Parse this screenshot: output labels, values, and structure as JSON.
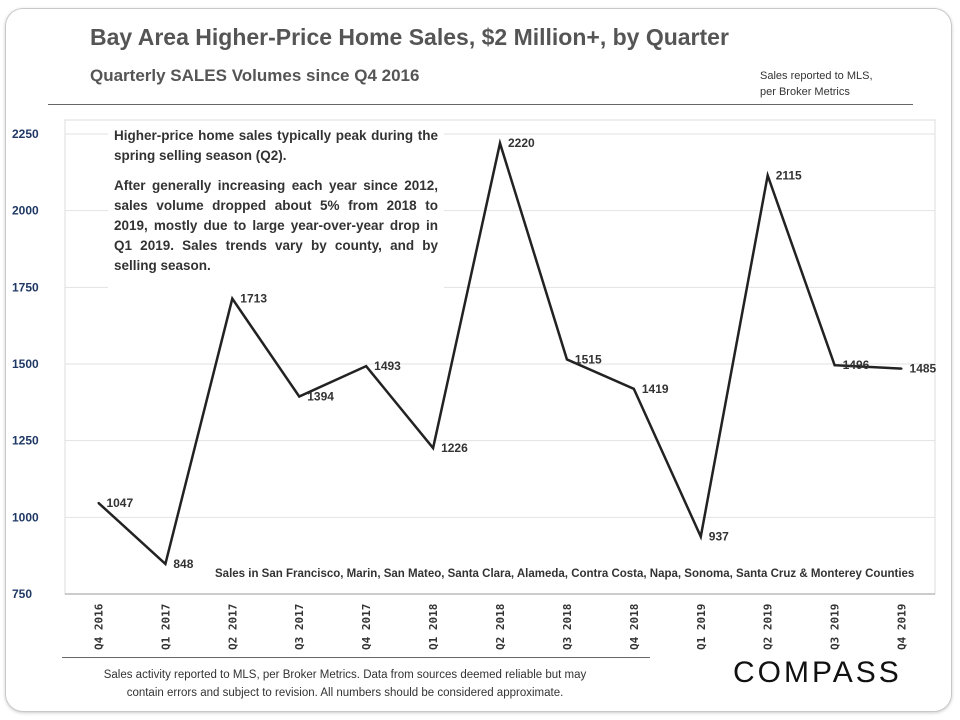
{
  "header": {
    "title": "Bay Area Higher-Price Home Sales, $2 Million+, by Quarter",
    "subtitle": "Quarterly  SALES Volumes since Q4 2016",
    "source_line1": "Sales reported to MLS,",
    "source_line2": "per Broker Metrics"
  },
  "annotation": {
    "p1": "Higher-price home sales typically peak during the spring selling season (Q2).",
    "p2": "After generally increasing each year since 2012, sales volume dropped about 5% from 2018 to 2019, mostly due to large year-over-year drop in Q1 2019. Sales trends vary by county, and by selling season."
  },
  "counties_note": "Sales in San Francisco, Marin, San Mateo, Santa Clara, Alameda, Contra Costa, Napa, Sonoma, Santa Cruz & Monterey Counties",
  "footer": {
    "line1": "Sales activity reported to MLS, per Broker Metrics. Data from sources deemed reliable but may",
    "line2": "contain errors and subject to revision. All numbers should  be considered approximate.",
    "logo": "COMPASS"
  },
  "chart_data": {
    "type": "line",
    "categories": [
      "Q4 2016",
      "Q1 2017",
      "Q2 2017",
      "Q3 2017",
      "Q4 2017",
      "Q1 2018",
      "Q2 2018",
      "Q3 2018",
      "Q4 2018",
      "Q1 2019",
      "Q2 2019",
      "Q3 2019",
      "Q4 2019"
    ],
    "values": [
      1047,
      848,
      1713,
      1394,
      1493,
      1226,
      2220,
      1515,
      1419,
      937,
      2115,
      1496,
      1485
    ],
    "ylim": [
      750,
      2250
    ],
    "yticks": [
      750,
      1000,
      1250,
      1500,
      1750,
      2000,
      2250
    ],
    "grid": true,
    "line_color": "#222222",
    "tick_color": "#1f3864"
  }
}
